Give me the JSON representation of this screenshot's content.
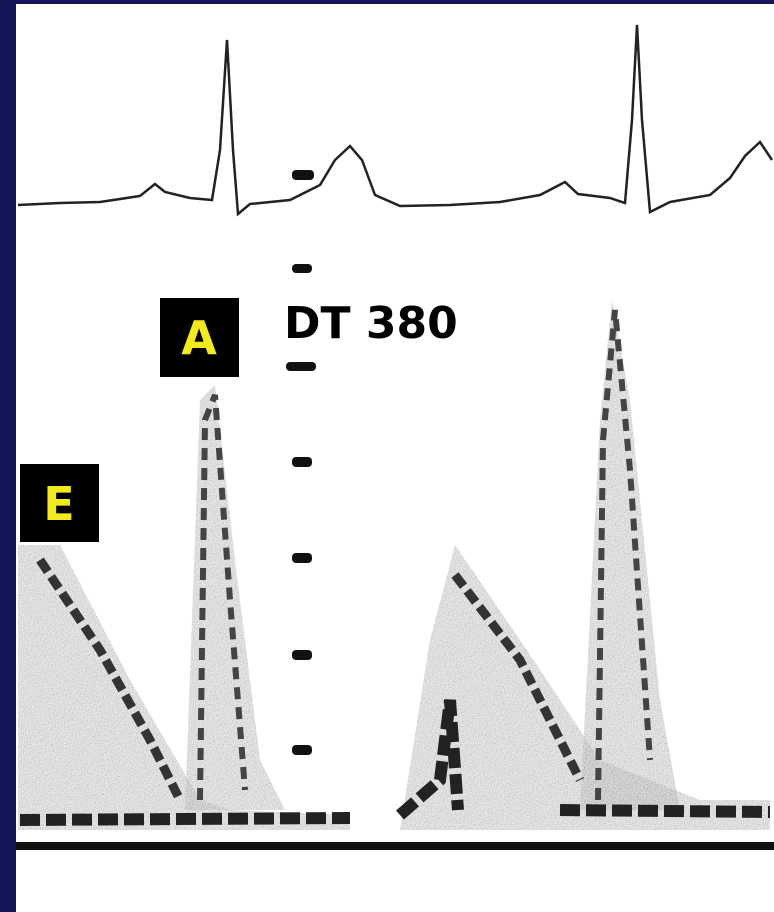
{
  "labels": {
    "a_wave": "A",
    "deceleration_time": "DT 380",
    "e_wave": "E"
  }
}
